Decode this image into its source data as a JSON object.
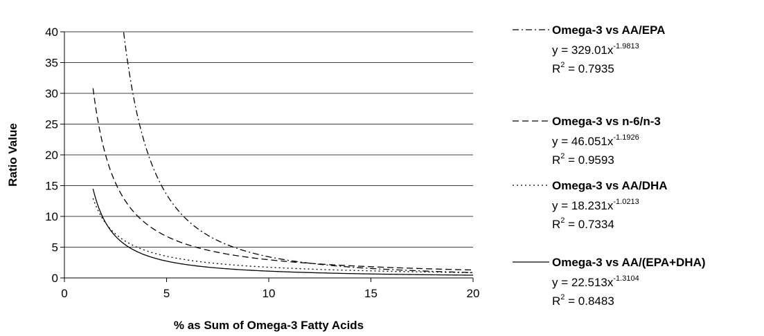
{
  "chart_data": {
    "type": "line",
    "title": "",
    "xlabel": "% as Sum of Omega-3 Fatty Acids",
    "ylabel": "Ratio Value",
    "xlim": [
      0,
      20
    ],
    "ylim": [
      0,
      40
    ],
    "x_ticks": [
      "0",
      "5",
      "10",
      "15",
      "20"
    ],
    "y_ticks": [
      "0",
      "5",
      "10",
      "15",
      "20",
      "25",
      "30",
      "35",
      "40"
    ],
    "grid": "horizontal",
    "legend_position": "right",
    "series": [
      {
        "name": "Omega-3 vs AA/EPA",
        "equation": {
          "prefix": "y = 329.01x",
          "exponent": "-1.9813"
        },
        "r2": {
          "prefix": "R",
          "exponent": "2",
          "value": " = 0.7935"
        },
        "line_style": "dash-dot",
        "coefficient": 329.01,
        "power": -1.9813,
        "x_start": 2.9,
        "x_end": 20,
        "points": [
          [
            2.9,
            39.6
          ],
          [
            3.5,
            27.4
          ],
          [
            4.0,
            21.0
          ],
          [
            5.0,
            13.5
          ],
          [
            6.0,
            9.4
          ],
          [
            7.0,
            6.9
          ],
          [
            8.0,
            5.3
          ],
          [
            10.0,
            3.4
          ],
          [
            12.0,
            2.4
          ],
          [
            15.0,
            1.5
          ],
          [
            20.0,
            0.85
          ]
        ]
      },
      {
        "name": "Omega-3 vs n-6/n-3",
        "equation": {
          "prefix": "y = 46.051x",
          "exponent": "-1.1926"
        },
        "r2": {
          "prefix": "R",
          "exponent": "2",
          "value": " = 0.9593"
        },
        "line_style": "dashed",
        "coefficient": 46.051,
        "power": -1.1926,
        "x_start": 1.4,
        "x_end": 20,
        "points": [
          [
            1.4,
            30.1
          ],
          [
            2.0,
            20.1
          ],
          [
            3.0,
            12.3
          ],
          [
            4.0,
            8.8
          ],
          [
            5.0,
            6.8
          ],
          [
            6.0,
            5.4
          ],
          [
            8.0,
            3.9
          ],
          [
            10.0,
            3.0
          ],
          [
            12.0,
            2.4
          ],
          [
            15.0,
            1.8
          ],
          [
            20.0,
            1.3
          ]
        ]
      },
      {
        "name": "Omega-3 vs AA/DHA",
        "equation": {
          "prefix": "y = 18.231x",
          "exponent": "-1.0213"
        },
        "r2": {
          "prefix": "R",
          "exponent": "2",
          "value": " = 0.7334"
        },
        "line_style": "dotted",
        "coefficient": 18.231,
        "power": -1.0213,
        "x_start": 1.4,
        "x_end": 20,
        "points": [
          [
            1.4,
            12.9
          ],
          [
            2.0,
            9.0
          ],
          [
            3.0,
            6.0
          ],
          [
            4.0,
            4.5
          ],
          [
            5.0,
            3.6
          ],
          [
            6.0,
            2.9
          ],
          [
            8.0,
            2.2
          ],
          [
            10.0,
            1.7
          ],
          [
            12.0,
            1.5
          ],
          [
            15.0,
            1.2
          ],
          [
            20.0,
            0.86
          ]
        ]
      },
      {
        "name": "Omega-3 vs AA/(EPA+DHA)",
        "equation": {
          "prefix": "y = 22.513x",
          "exponent": "-1.3104"
        },
        "r2": {
          "prefix": "R",
          "exponent": "2",
          "value": " = 0.8483"
        },
        "line_style": "solid",
        "coefficient": 22.513,
        "power": -1.3104,
        "x_start": 1.4,
        "x_end": 20,
        "points": [
          [
            1.4,
            14.2
          ],
          [
            2.0,
            9.1
          ],
          [
            3.0,
            5.4
          ],
          [
            4.0,
            3.7
          ],
          [
            5.0,
            2.7
          ],
          [
            6.0,
            2.2
          ],
          [
            8.0,
            1.5
          ],
          [
            10.0,
            1.1
          ],
          [
            12.0,
            0.87
          ],
          [
            15.0,
            0.65
          ],
          [
            20.0,
            0.45
          ]
        ]
      }
    ]
  }
}
